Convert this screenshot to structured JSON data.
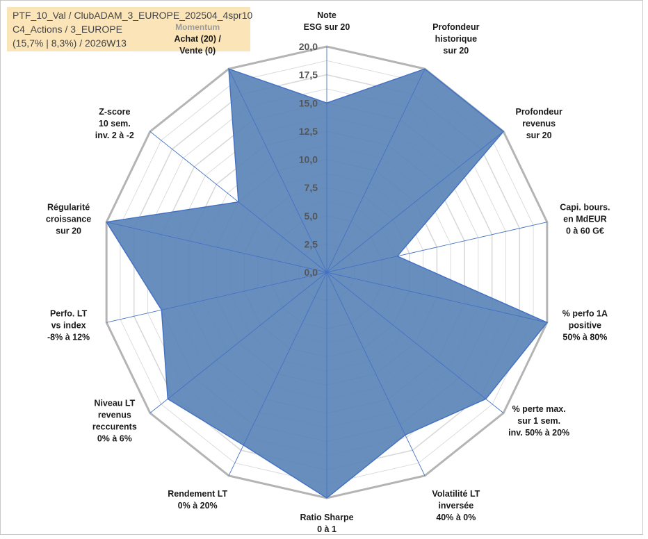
{
  "info": {
    "line1": "PTF_10_Val / ClubADAM_3_EUROPE_202504_4spr10",
    "line2": "C4_Actions / 3_EUROPE",
    "line3": "(15,7% | 8,3%) / 2026W13"
  },
  "colors": {
    "fill": "#5b84b9",
    "stroke": "#4472c4",
    "outer_grid": "#b4b4b4",
    "inner_grid": "#d9d9d9",
    "spoke": "#4472c4",
    "info_bg": "#fbe5b8"
  },
  "chart_data": {
    "type": "radar",
    "title": "",
    "rmin": 0,
    "rmax": 20,
    "major_step": 2.5,
    "ticks": [
      "0,0",
      "2,5",
      "5,0",
      "7,5",
      "10,0",
      "12,5",
      "15,0",
      "17,5",
      "20,0"
    ],
    "group_label": "Momentum",
    "axes": [
      {
        "lines": [
          "Note",
          "ESG sur 20"
        ],
        "value": 15.0
      },
      {
        "lines": [
          "Profondeur",
          "historique",
          "sur 20"
        ],
        "value": 20.0
      },
      {
        "lines": [
          "Profondeur",
          "revenus",
          "sur 20"
        ],
        "value": 20.0
      },
      {
        "lines": [
          "Capi. bours.",
          "en MdEUR",
          "0 à 60 G€"
        ],
        "value": 6.4
      },
      {
        "lines": [
          "% perfo 1A",
          "positive",
          "50% à 80%"
        ],
        "value": 20.0
      },
      {
        "lines": [
          "% perte max.",
          "sur 1 sem.",
          "inv. 50% à 20%"
        ],
        "value": 18.0
      },
      {
        "lines": [
          "Volatilité LT",
          "inversée",
          "40% à 0%"
        ],
        "value": 16.0
      },
      {
        "lines": [
          "Ratio Sharpe",
          "0 à 1"
        ],
        "value": 20.0
      },
      {
        "lines": [
          "Rendement LT",
          "0% à 20%"
        ],
        "value": 17.0
      },
      {
        "lines": [
          "Niveau LT",
          "revenus",
          "reccurents",
          "0% à 6%"
        ],
        "value": 18.0
      },
      {
        "lines": [
          "Perfo. LT",
          "vs index",
          "-8% à 12%"
        ],
        "value": 15.0
      },
      {
        "lines": [
          "Régularité",
          "croissance",
          "sur 20"
        ],
        "value": 20.0
      },
      {
        "lines": [
          "Z-score",
          "10 sem.",
          "inv. 2 à -2"
        ],
        "value": 10.0
      },
      {
        "lines": [
          "Achat (20) /",
          "Vente (0)"
        ],
        "value": 20.0
      }
    ]
  }
}
